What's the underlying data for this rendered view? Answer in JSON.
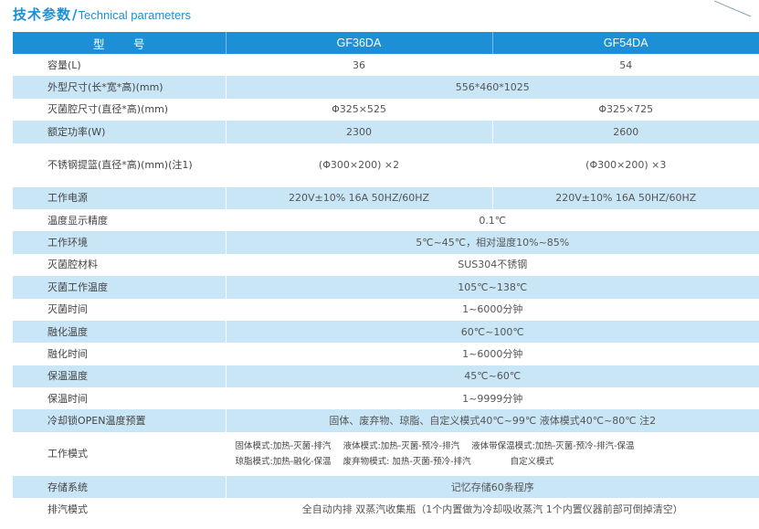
{
  "heading": {
    "cn": "技术参数",
    "slash": "/",
    "en": "Technical parameters"
  },
  "table": {
    "header": {
      "label": "型 号",
      "model_a": "GF36DA",
      "model_b": "GF54DA"
    },
    "rows": {
      "capacity": {
        "label": "容量(L)",
        "a": "36",
        "b": "54"
      },
      "dimensions": {
        "label": "外型尺寸(长*宽*高)(mm)",
        "value": "556*460*1025"
      },
      "chamber": {
        "label": "灭菌腔尺寸(直径*高)(mm)",
        "a": "Φ325×525",
        "b": "Φ325×725"
      },
      "power": {
        "label": "额定功率(W)",
        "a": "2300",
        "b": "2600"
      },
      "basket": {
        "label": "不锈钢提篮(直径*高)(mm)(注1)",
        "a": "(Φ300×200) ×2",
        "b": "(Φ300×200) ×3"
      },
      "supply": {
        "label": "工作电源",
        "a": "220V±10% 16A  50HZ/60HZ",
        "b": "220V±10% 16A  50HZ/60HZ"
      },
      "temp_precision": {
        "label": "温度显示精度",
        "value": "0.1℃"
      },
      "environment": {
        "label": "工作环境",
        "value": "5℃~45℃，相对湿度10%~85%"
      },
      "material": {
        "label": "灭菌腔材料",
        "value": "SUS304不锈钢"
      },
      "steril_temp": {
        "label": "灭菌工作温度",
        "value": "105℃~138℃"
      },
      "steril_time": {
        "label": "灭菌时间",
        "value": "1~6000分钟"
      },
      "melt_temp": {
        "label": "融化温度",
        "value": "60℃~100℃"
      },
      "melt_time": {
        "label": "融化时间",
        "value": "1~6000分钟"
      },
      "warm_temp": {
        "label": "保温温度",
        "value": "45℃~60℃"
      },
      "warm_time": {
        "label": "保温时间",
        "value": "1~9999分钟"
      },
      "cool_lock": {
        "label": "冷却锁OPEN温度预置",
        "value": "固体、废弃物、琼脂、自定义模式40℃~99℃  液体模式40℃~80℃ 注2"
      },
      "work_mode": {
        "label": "工作模式",
        "line1": [
          "固体模式:加热-灭菌-排汽",
          "液体模式:加热-灭菌-预冷-排汽",
          "液体带保温模式:加热-灭菌-预冷-排汽-保温"
        ],
        "line2": [
          "琼脂模式:加热-融化-保温",
          "废弃物模式: 加热-灭菌-预冷-排汽",
          "自定义模式"
        ]
      },
      "storage": {
        "label": "存储系统",
        "value": "记忆存储60条程序"
      },
      "exhaust": {
        "label": "排汽模式",
        "value": "全自动内排 双蒸汽收集瓶（1个内置做为冷却吸收蒸汽 1个内置仪器前部可倒掉清空）"
      }
    }
  },
  "colors": {
    "accent": "#1d8fd6",
    "alt_row": "#c9e6f7"
  }
}
